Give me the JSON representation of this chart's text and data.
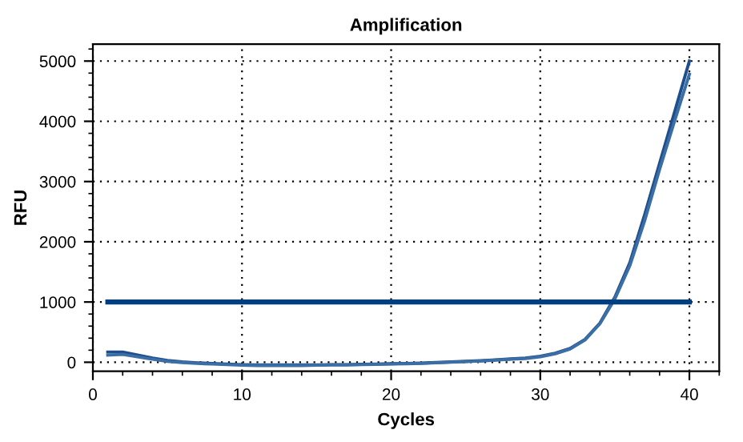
{
  "chart_data": {
    "type": "line",
    "title": "Amplification",
    "xlabel": "Cycles",
    "ylabel": "RFU",
    "x": [
      1,
      2,
      3,
      4,
      5,
      6,
      7,
      8,
      9,
      10,
      11,
      12,
      13,
      14,
      15,
      16,
      17,
      18,
      19,
      20,
      21,
      22,
      23,
      24,
      25,
      26,
      27,
      28,
      29,
      30,
      31,
      32,
      33,
      34,
      35,
      36,
      37,
      38,
      39,
      40
    ],
    "series": [
      {
        "color": "#1f4e8c",
        "values": [
          170,
          170,
          120,
          70,
          30,
          5,
          -10,
          -20,
          -30,
          -40,
          -45,
          -45,
          -45,
          -45,
          -45,
          -40,
          -40,
          -35,
          -30,
          -25,
          -20,
          -15,
          -5,
          5,
          15,
          25,
          40,
          55,
          70,
          100,
          150,
          230,
          380,
          650,
          1080,
          1650,
          2450,
          3300,
          4150,
          5000
        ]
      },
      {
        "color": "#3a6ea5",
        "values": [
          120,
          130,
          90,
          50,
          15,
          -5,
          -20,
          -30,
          -40,
          -50,
          -55,
          -55,
          -55,
          -55,
          -50,
          -45,
          -45,
          -40,
          -35,
          -30,
          -25,
          -20,
          -10,
          0,
          10,
          20,
          35,
          50,
          60,
          90,
          140,
          220,
          370,
          640,
          1050,
          1600,
          2350,
          3200,
          4000,
          4780
        ]
      },
      {
        "color": "#003f7f",
        "x": [
          1,
          40
        ],
        "values": [
          1000,
          1000
        ]
      }
    ],
    "xlim": [
      0,
      42
    ],
    "ylim": [
      -150,
      5280
    ],
    "xticks": [
      0,
      10,
      20,
      30,
      40
    ],
    "yticks": [
      0,
      1000,
      2000,
      3000,
      4000,
      5000
    ],
    "grid": true,
    "line_style": "solid",
    "marker": "none"
  }
}
